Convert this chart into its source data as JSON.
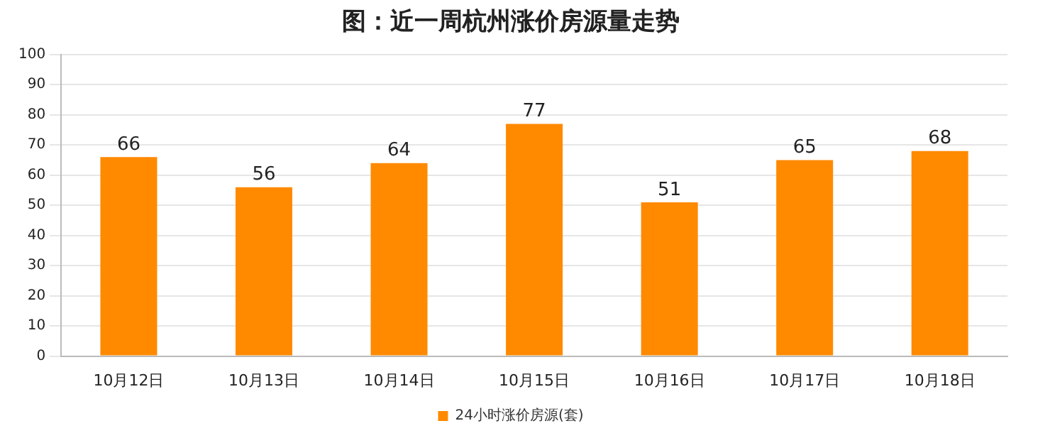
{
  "chart_data": {
    "type": "bar",
    "title": "图：近一周杭州涨价房源量走势",
    "categories": [
      "10月12日",
      "10月13日",
      "10月14日",
      "10月15日",
      "10月16日",
      "10月17日",
      "10月18日"
    ],
    "series": [
      {
        "name": "24小时涨价房源(套)",
        "color": "#ff8a00",
        "values": [
          66,
          56,
          64,
          77,
          51,
          65,
          68
        ]
      }
    ],
    "ylim": [
      0,
      100
    ],
    "yticks": [
      0,
      10,
      20,
      30,
      40,
      50,
      60,
      70,
      80,
      90,
      100
    ],
    "grid": "y",
    "legend": "bottom",
    "data_labels": true
  }
}
